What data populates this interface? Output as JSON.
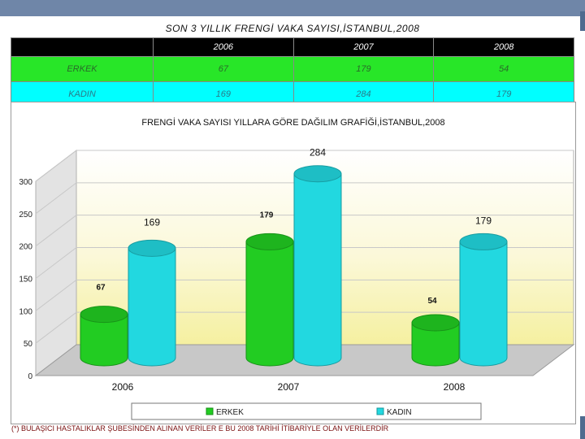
{
  "page_title": "SON 3 YILLIK FRENGİ VAKA SAYISI,İSTANBUL,2008",
  "table": {
    "columns": [
      "2006",
      "2007",
      "2008"
    ],
    "rows": [
      {
        "label": "ERKEK",
        "values": [
          "67",
          "179",
          "54"
        ]
      },
      {
        "label": "KADIN",
        "values": [
          "169",
          "284",
          "179"
        ]
      }
    ]
  },
  "footnote": "(*) BULAŞICI HASTALIKLAR ŞUBESİNDEN ALINAN VERİLER E BU 2008 TARİHİ İTİBARİYLE OLAN VERİLERDİR",
  "colors": {
    "erkek": "#22cc22",
    "kadin": "#22d8e0",
    "wall": "#f5f0a0",
    "floor": "#c8c8c8"
  },
  "chart_data": {
    "type": "bar",
    "title": "FRENGİ VAKA SAYISI YILLARA GÖRE DAĞILIM GRAFİĞİ,İSTANBUL,2008",
    "categories": [
      "2006",
      "2007",
      "2008"
    ],
    "series": [
      {
        "name": "ERKEK",
        "values": [
          67,
          179,
          54
        ]
      },
      {
        "name": "KADIN",
        "values": [
          169,
          284,
          179
        ]
      }
    ],
    "ylim": [
      0,
      300
    ],
    "yticks": [
      0,
      50,
      100,
      150,
      200,
      250,
      300
    ],
    "grid": true,
    "legend": "bottom",
    "style": "3d-cylinder"
  }
}
